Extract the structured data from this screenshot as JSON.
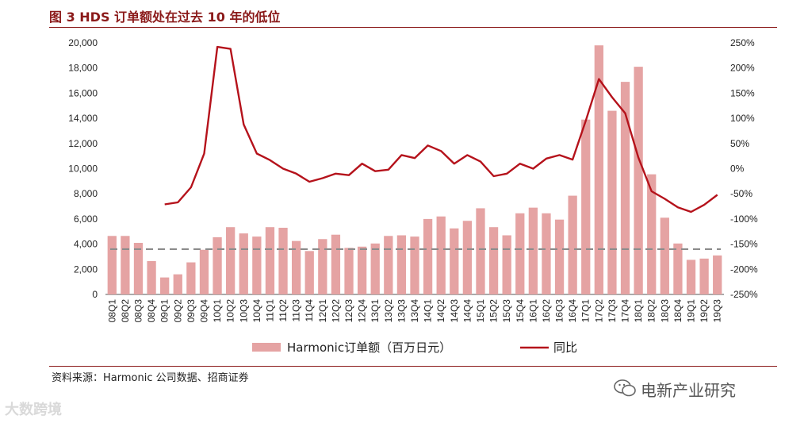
{
  "title": "图 3   HDS 订单额处在过去 10 年的低位",
  "source": "资料来源：Harmonic 公司数据、招商证券",
  "watermark": "电新产业研究",
  "brand": "大数跨境",
  "colors": {
    "bar": "#e5a3a3",
    "line": "#b5121b",
    "reference": "#8c8c8c",
    "title": "#8b1a1a"
  },
  "chart_data": {
    "type": "bar",
    "categories": [
      "08Q1",
      "08Q2",
      "08Q3",
      "08Q4",
      "09Q1",
      "09Q2",
      "09Q3",
      "09Q4",
      "10Q1",
      "10Q2",
      "10Q3",
      "10Q4",
      "11Q1",
      "11Q2",
      "11Q3",
      "11Q4",
      "12Q1",
      "12Q2",
      "12Q3",
      "12Q4",
      "13Q1",
      "13Q2",
      "13Q3",
      "13Q4",
      "14Q1",
      "14Q2",
      "14Q3",
      "14Q4",
      "15Q1",
      "15Q2",
      "15Q3",
      "15Q4",
      "16Q1",
      "16Q2",
      "16Q3",
      "16Q4",
      "17Q1",
      "17Q2",
      "17Q3",
      "17Q4",
      "18Q1",
      "18Q2",
      "18Q3",
      "18Q4",
      "19Q1",
      "19Q2",
      "19Q3"
    ],
    "y_left": {
      "lim": [
        0,
        20000
      ],
      "ticks": [
        "0",
        "2,000",
        "4,000",
        "6,000",
        "8,000",
        "10,000",
        "12,000",
        "14,000",
        "16,000",
        "18,000",
        "20,000"
      ]
    },
    "y_right": {
      "lim": [
        -250,
        250
      ],
      "ticks": [
        "-250%",
        "-200%",
        "-150%",
        "-100%",
        "-50%",
        "0%",
        "50%",
        "100%",
        "150%",
        "200%",
        "250%"
      ]
    },
    "series": [
      {
        "name": "Harmonic订单额（百万日元）",
        "axis": "left",
        "kind": "bar",
        "values": [
          4650,
          4650,
          4100,
          2650,
          1350,
          1600,
          2550,
          3550,
          4550,
          5350,
          4850,
          4600,
          5350,
          5300,
          4250,
          3450,
          4400,
          4750,
          3700,
          3800,
          4050,
          4650,
          4700,
          4600,
          6000,
          6200,
          5250,
          5850,
          6850,
          5350,
          4700,
          6450,
          6900,
          6450,
          5950,
          7850,
          13900,
          19800,
          14600,
          16900,
          18100,
          9550,
          6100,
          4050,
          2750,
          2850,
          3100
        ]
      },
      {
        "name": "同比",
        "axis": "right",
        "kind": "line",
        "values": [
          null,
          null,
          null,
          null,
          -71,
          -67,
          -37,
          30,
          242,
          238,
          88,
          30,
          17,
          0,
          -10,
          -26,
          -19,
          -10,
          -13,
          10,
          -5,
          -2,
          27,
          21,
          46,
          35,
          10,
          27,
          14,
          -15,
          -10,
          10,
          0,
          20,
          27,
          18,
          95,
          178,
          142,
          110,
          22,
          -45,
          -60,
          -77,
          -86,
          -72,
          -52
        ]
      },
      {
        "kind": "reference-line",
        "axis": "left",
        "value": 3600
      }
    ],
    "legend_position": "bottom"
  }
}
